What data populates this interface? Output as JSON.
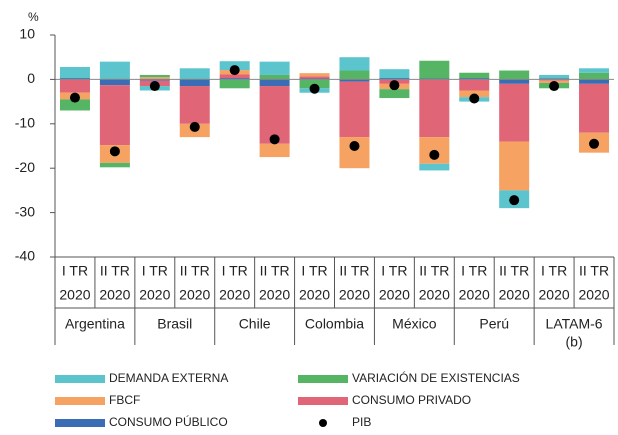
{
  "chart_data": {
    "type": "stacked-bar",
    "y_unit": "%",
    "categories": [
      "I TR",
      "II TR",
      "I TR",
      "II TR",
      "I TR",
      "II TR",
      "I TR",
      "II TR",
      "I TR",
      "II TR",
      "I TR",
      "II TR",
      "I TR",
      "II TR"
    ],
    "category_years": [
      "2020",
      "2020",
      "2020",
      "2020",
      "2020",
      "2020",
      "2020",
      "2020",
      "2020",
      "2020",
      "2020",
      "2020",
      "2020",
      "2020"
    ],
    "groups": [
      {
        "name": "Argentina"
      },
      {
        "name": "Brasil"
      },
      {
        "name": "Chile"
      },
      {
        "name": "Colombia"
      },
      {
        "name": "México"
      },
      {
        "name": "Perú"
      },
      {
        "name": "LATAM-6",
        "note": "(b)"
      }
    ],
    "series": [
      {
        "name": "CONSUMO PÚBLICO",
        "color": "#3a6db3",
        "values": [
          0.3,
          -1.3,
          -0.3,
          -1.5,
          0.3,
          -1.5,
          0.2,
          -0.5,
          0.3,
          0.2,
          0.3,
          -1,
          0.2,
          -1
        ]
      },
      {
        "name": "CONSUMO PRIVADO",
        "color": "#df6577",
        "values": [
          -3,
          -13.5,
          -1.2,
          -8.5,
          0.8,
          -13,
          0.5,
          -12.5,
          -1,
          -13,
          -2.5,
          -13,
          -0.3,
          -11
        ]
      },
      {
        "name": "FBCF",
        "color": "#f5a263",
        "values": [
          -1.5,
          -4,
          0.5,
          -3,
          1,
          -3,
          0.7,
          -7,
          -1.2,
          -6,
          -1.5,
          -11,
          -0.5,
          -4.5
        ]
      },
      {
        "name": "VARIACIÓN DE EXISTENCIAS",
        "color": "#55b565",
        "values": [
          -2.5,
          -1,
          0.5,
          0,
          -2,
          1,
          -2,
          2,
          -2,
          4,
          1.2,
          2,
          -1.2,
          1.5
        ]
      },
      {
        "name": "DEMANDA EXTERNA",
        "color": "#5cc4cc",
        "values": [
          2.5,
          4,
          -1,
          2.5,
          2,
          3,
          -1,
          3,
          2,
          -1.5,
          -1,
          -4,
          0.8,
          1
        ]
      }
    ],
    "points": {
      "name": "PIB",
      "color": "#000000",
      "values": [
        -4.1,
        -16.2,
        -1.5,
        -10.7,
        2.1,
        -13.5,
        -2.1,
        -15,
        -1.3,
        -17,
        -4.3,
        -27.2,
        -1.5,
        -14.5
      ]
    },
    "legend_order": [
      4,
      3,
      2,
      1,
      0
    ],
    "ylim": [
      -40,
      10
    ],
    "yticks": [
      -40,
      -30,
      -20,
      -10,
      0,
      10
    ]
  }
}
